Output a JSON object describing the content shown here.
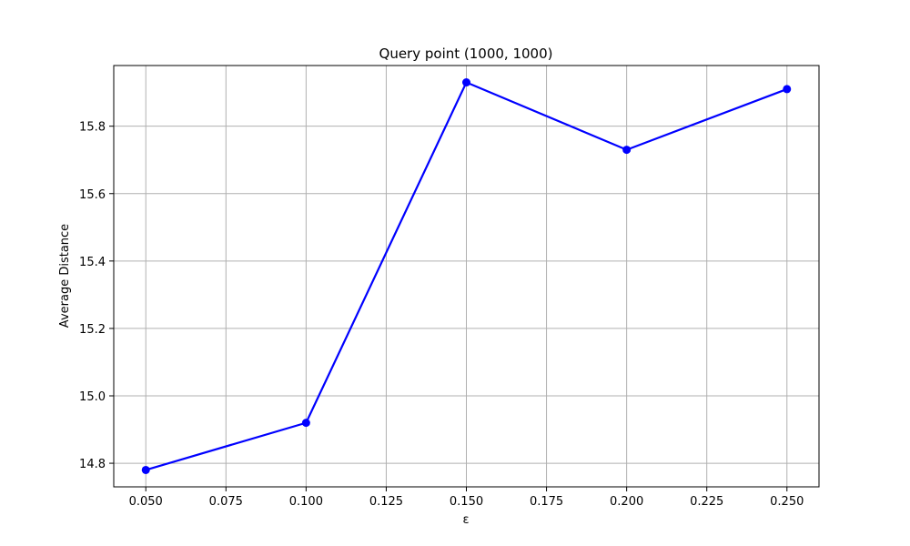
{
  "chart_data": {
    "type": "line",
    "title": "Query point (1000, 1000)",
    "xlabel": "ε",
    "ylabel": "Average Distance",
    "xlim": [
      0.04,
      0.26
    ],
    "ylim": [
      14.73,
      15.98
    ],
    "xticks": [
      "0.050",
      "0.075",
      "0.100",
      "0.125",
      "0.150",
      "0.175",
      "0.200",
      "0.225",
      "0.250"
    ],
    "yticks": [
      "14.8",
      "15.0",
      "15.2",
      "15.4",
      "15.6",
      "15.8"
    ],
    "grid": true,
    "series": [
      {
        "color": "#0000ff",
        "marker": "circle",
        "x": [
          0.05,
          0.1,
          0.15,
          0.2,
          0.25
        ],
        "y": [
          14.78,
          14.92,
          15.93,
          15.73,
          15.91
        ]
      }
    ]
  }
}
